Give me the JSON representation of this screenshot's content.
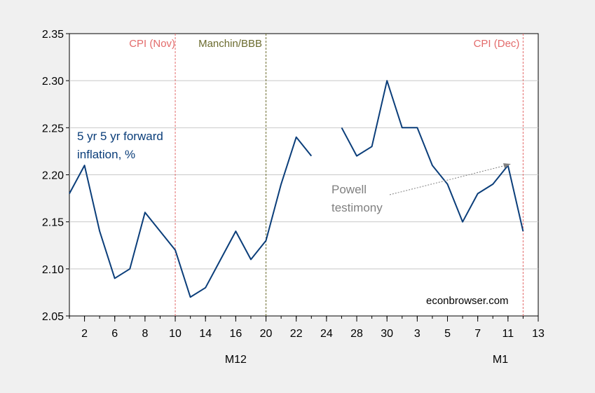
{
  "chart_data": {
    "type": "line",
    "series": [
      {
        "label": "5 yr 5 yr forward inflation, %",
        "color": "#0b3e7a",
        "values": [
          2.18,
          2.21,
          2.14,
          2.09,
          2.1,
          2.16,
          2.14,
          2.12,
          2.07,
          2.08,
          2.11,
          2.14,
          2.11,
          2.13,
          2.19,
          2.24,
          2.22,
          null,
          2.25,
          2.22,
          2.23,
          2.3,
          2.25,
          2.25,
          2.21,
          2.19,
          2.15,
          2.18,
          2.19,
          2.21,
          2.14
        ]
      }
    ],
    "x_dates": [
      "2021-12-01",
      "2021-12-02",
      "2021-12-03",
      "2021-12-06",
      "2021-12-07",
      "2021-12-08",
      "2021-12-09",
      "2021-12-10",
      "2021-12-13",
      "2021-12-14",
      "2021-12-15",
      "2021-12-16",
      "2021-12-17",
      "2021-12-20",
      "2021-12-21",
      "2021-12-22",
      "2021-12-23",
      "2021-12-24",
      "2021-12-27",
      "2021-12-28",
      "2021-12-29",
      "2021-12-30",
      "2021-12-31",
      "2022-01-03",
      "2022-01-04",
      "2022-01-05",
      "2022-01-06",
      "2022-01-07",
      "2022-01-10",
      "2022-01-11",
      "2022-01-12"
    ],
    "x_tick_labels": [
      "2",
      "6",
      "8",
      "10",
      "14",
      "16",
      "20",
      "22",
      "24",
      "28",
      "30",
      "3",
      "5",
      "7",
      "11",
      "13"
    ],
    "x_tick_labels_indexed": [
      {
        "label": "2",
        "i": 1
      },
      {
        "label": "6",
        "i": 3
      },
      {
        "label": "8",
        "i": 5
      },
      {
        "label": "10",
        "i": 7
      },
      {
        "label": "14",
        "i": 9
      },
      {
        "label": "16",
        "i": 11
      },
      {
        "label": "20",
        "i": 13
      },
      {
        "label": "22",
        "i": 15
      },
      {
        "label": "24",
        "i": 17
      },
      {
        "label": "28",
        "i": 19
      },
      {
        "label": "30",
        "i": 21
      },
      {
        "label": "3",
        "i": 23
      },
      {
        "label": "5",
        "i": 25
      },
      {
        "label": "7",
        "i": 27
      },
      {
        "label": "11",
        "i": 29
      },
      {
        "label": "13",
        "i": 31
      }
    ],
    "month_labels": [
      {
        "label": "M12",
        "i": 11
      },
      {
        "label": "M1",
        "i": 28.5
      }
    ],
    "y_ticks": [
      "2.05",
      "2.10",
      "2.15",
      "2.20",
      "2.25",
      "2.30",
      "2.35"
    ],
    "ylim": [
      2.05,
      2.35
    ],
    "grid": true,
    "vlines": [
      {
        "label": "CPI (Nov)",
        "i": 7,
        "color": "#e36b6b"
      },
      {
        "label": "Manchin/BBB",
        "i": 13,
        "color": "#6b6b2e"
      },
      {
        "label": "CPI (Dec)",
        "i": 30,
        "color": "#e36b6b"
      }
    ],
    "series_label_lines": [
      "5 yr 5 yr forward",
      "inflation, %"
    ],
    "annotation": {
      "lines": [
        "Powell",
        "testimony"
      ],
      "color": "#808080",
      "target_date": "2022-01-11",
      "target_value": 2.21
    },
    "watermark": "econbrowser.com"
  }
}
